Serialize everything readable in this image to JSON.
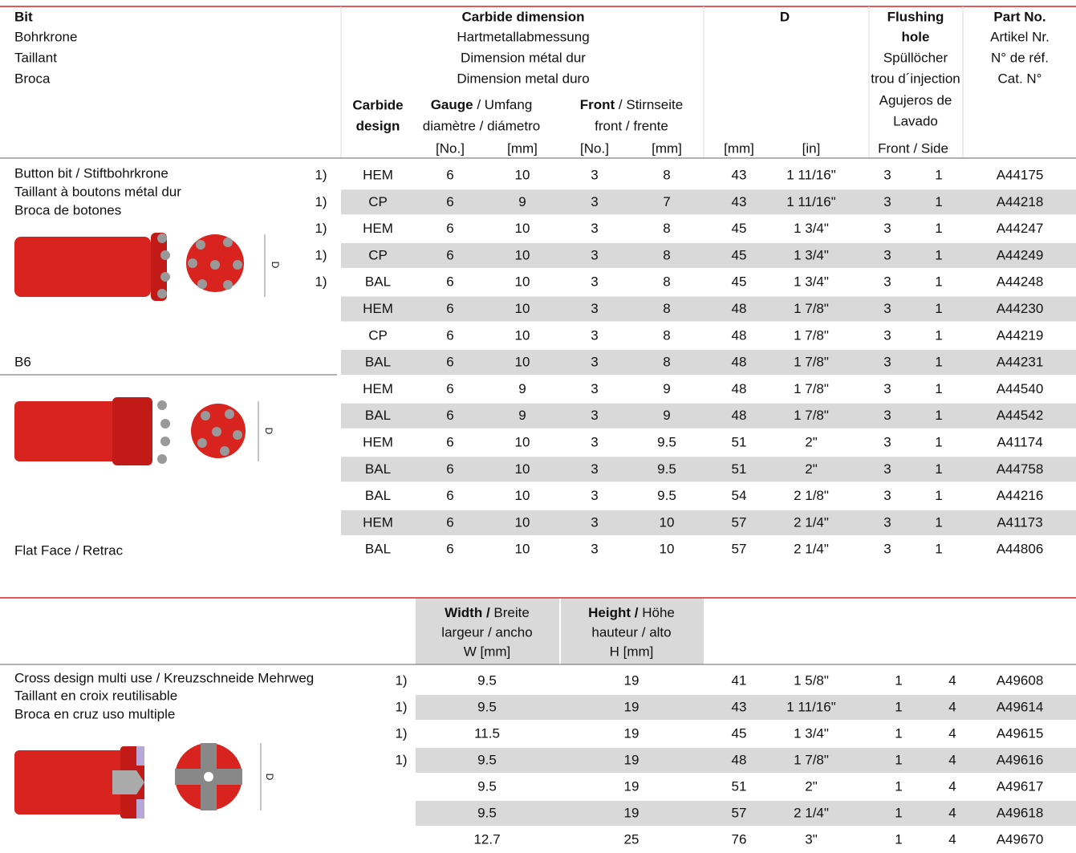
{
  "table1": {
    "header": {
      "bit": [
        "Bit",
        "Bohrkrone",
        "Taillant",
        "Broca"
      ],
      "carbide_dimension": [
        "Carbide dimension",
        "Hartmetallabmessung",
        "Dimension métal dur",
        "Dimension metal duro"
      ],
      "carbide_design": [
        "Carbide",
        "design"
      ],
      "gauge": {
        "bold": "Gauge",
        "rest": " / Umfang",
        "line2": "diamètre / diámetro"
      },
      "front": {
        "bold": "Front",
        "rest": " / Stirnseite",
        "line2": "front / frente"
      },
      "d": "D",
      "flushing": [
        "Flushing",
        "hole",
        "Spüllöcher",
        "trou d´injection",
        "Agujeros de",
        "Lavado"
      ],
      "part_no": [
        "Part No.",
        "Artikel Nr.",
        "N° de réf.",
        "Cat. N°"
      ],
      "units": [
        "[No.]",
        "[mm]",
        "[No.]",
        "[mm]",
        "[mm]",
        "[in]"
      ],
      "front_side": "Front / Side"
    },
    "labels": {
      "group1": [
        "Button bit / Stiftbohrkrone",
        "Taillant à boutons métal dur",
        "Broca de botones"
      ],
      "b6": "B6",
      "flat": "Flat Face / Retrac"
    },
    "rows": [
      [
        "1)",
        "HEM",
        "6",
        "10",
        "3",
        "8",
        "43",
        "1 11/16\"",
        "3",
        "1",
        "A44175"
      ],
      [
        "1)",
        "CP",
        "6",
        "9",
        "3",
        "7",
        "43",
        "1 11/16\"",
        "3",
        "1",
        "A44218"
      ],
      [
        "1)",
        "HEM",
        "6",
        "10",
        "3",
        "8",
        "45",
        "1 3/4\"",
        "3",
        "1",
        "A44247"
      ],
      [
        "1)",
        "CP",
        "6",
        "10",
        "3",
        "8",
        "45",
        "1 3/4\"",
        "3",
        "1",
        "A44249"
      ],
      [
        "1)",
        "BAL",
        "6",
        "10",
        "3",
        "8",
        "45",
        "1 3/4\"",
        "3",
        "1",
        "A44248"
      ],
      [
        null,
        "HEM",
        "6",
        "10",
        "3",
        "8",
        "48",
        "1 7/8\"",
        "3",
        "1",
        "A44230"
      ],
      [
        null,
        "CP",
        "6",
        "10",
        "3",
        "8",
        "48",
        "1 7/8\"",
        "3",
        "1",
        "A44219"
      ],
      [
        null,
        "BAL",
        "6",
        "10",
        "3",
        "8",
        "48",
        "1 7/8\"",
        "3",
        "1",
        "A44231"
      ],
      [
        null,
        "HEM",
        "6",
        "9",
        "3",
        "9",
        "48",
        "1 7/8\"",
        "3",
        "1",
        "A44540"
      ],
      [
        null,
        "BAL",
        "6",
        "9",
        "3",
        "9",
        "48",
        "1 7/8\"",
        "3",
        "1",
        "A44542"
      ],
      [
        null,
        "HEM",
        "6",
        "10",
        "3",
        "9.5",
        "51",
        "2\"",
        "3",
        "1",
        "A41174"
      ],
      [
        null,
        "BAL",
        "6",
        "10",
        "3",
        "9.5",
        "51",
        "2\"",
        "3",
        "1",
        "A44758"
      ],
      [
        null,
        "BAL",
        "6",
        "10",
        "3",
        "9.5",
        "54",
        "2 1/8\"",
        "3",
        "1",
        "A44216"
      ],
      [
        null,
        "HEM",
        "6",
        "10",
        "3",
        "10",
        "57",
        "2 1/4\"",
        "3",
        "1",
        "A41173"
      ],
      [
        null,
        "BAL",
        "6",
        "10",
        "3",
        "10",
        "57",
        "2 1/4\"",
        "3",
        "1",
        "A44806"
      ]
    ]
  },
  "table2": {
    "header": {
      "width": {
        "bold": "Width /",
        "rest": " Breite",
        "line2": "largeur / ancho",
        "line3": "W [mm]"
      },
      "height": {
        "bold": "Height /",
        "rest": " Höhe",
        "line2": "hauteur / alto",
        "line3": "H [mm]"
      }
    },
    "labels": [
      "Cross design multi use / Kreuzschneide Mehrweg",
      "Taillant en croix reutilisable",
      "Broca en cruz uso multiple"
    ],
    "rows": [
      [
        "1)",
        "9.5",
        "19",
        "41",
        "1 5/8\"",
        "1",
        "4",
        "A49608"
      ],
      [
        "1)",
        "9.5",
        "19",
        "43",
        "1 11/16\"",
        "1",
        "4",
        "A49614"
      ],
      [
        "1)",
        "11.5",
        "19",
        "45",
        "1 3/4\"",
        "1",
        "4",
        "A49615"
      ],
      [
        "1)",
        "9.5",
        "19",
        "48",
        "1 7/8\"",
        "1",
        "4",
        "A49616"
      ],
      [
        null,
        "9.5",
        "19",
        "51",
        "2\"",
        "1",
        "4",
        "A49617"
      ],
      [
        null,
        "9.5",
        "19",
        "57",
        "2 1/4\"",
        "1",
        "4",
        "A49618"
      ],
      [
        null,
        "12.7",
        "25",
        "76",
        "3\"",
        "1",
        "4",
        "A49670"
      ]
    ]
  }
}
